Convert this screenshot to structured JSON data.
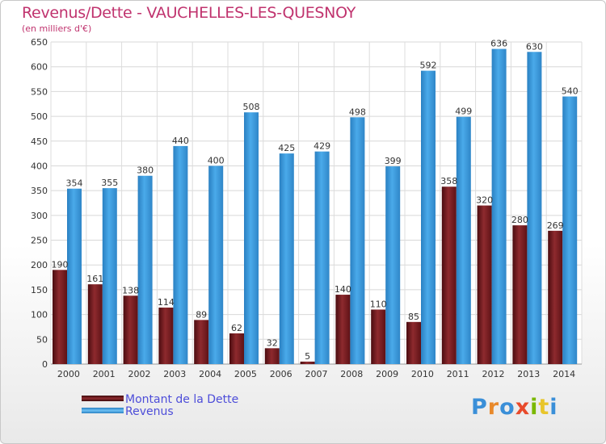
{
  "header": {
    "title": "Revenus/Dette - VAUCHELLES-LES-QUESNOY",
    "subtitle": "(en milliers d'€)"
  },
  "legend": {
    "items": [
      {
        "label": "Montant de la Dette",
        "color": "#7a1a1e"
      },
      {
        "label": "Revenus",
        "color": "#3d9ee0"
      }
    ]
  },
  "logo": {
    "text": "Proxiti",
    "letter_colors": [
      "#3a8fd8",
      "#e8892b",
      "#3a8fd8",
      "#e84a2b",
      "#7ab800",
      "#e8c52b",
      "#3a8fd8"
    ]
  },
  "chart_data": {
    "type": "bar",
    "categories": [
      "2000",
      "2001",
      "2002",
      "2003",
      "2004",
      "2005",
      "2006",
      "2007",
      "2008",
      "2009",
      "2010",
      "2011",
      "2012",
      "2013",
      "2014"
    ],
    "series": [
      {
        "name": "Montant de la Dette",
        "color": "#7a1a1e",
        "values": [
          190,
          161,
          138,
          114,
          89,
          62,
          32,
          5,
          140,
          110,
          85,
          358,
          320,
          280,
          269
        ]
      },
      {
        "name": "Revenus",
        "color": "#3d9ee0",
        "values": [
          354,
          355,
          380,
          440,
          400,
          508,
          425,
          429,
          498,
          399,
          592,
          499,
          636,
          630,
          540
        ]
      }
    ],
    "ylim": [
      0,
      650
    ],
    "yticks": [
      0,
      50,
      100,
      150,
      200,
      250,
      300,
      350,
      400,
      450,
      500,
      550,
      600,
      650
    ],
    "grid": true,
    "legend_position": "bottom-left",
    "title": "Revenus/Dette - VAUCHELLES-LES-QUESNOY",
    "xlabel": "",
    "ylabel": "(en milliers d'€)"
  }
}
